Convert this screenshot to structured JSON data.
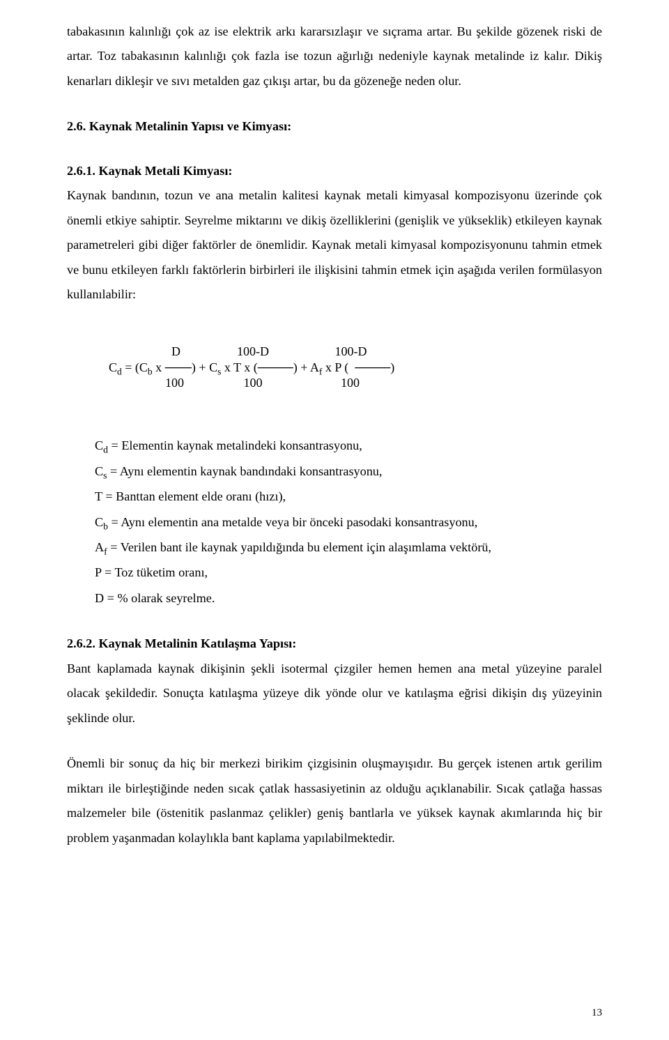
{
  "para_intro": "tabakasının kalınlığı çok az ise elektrik arkı kararsızlaşır ve sıçrama artar. Bu şekilde gözenek riski de artar. Toz tabakasının kalınlığı çok fazla ise tozun ağırlığı nedeniyle kaynak metalinde iz kalır. Dikiş kenarları dikleşir ve sıvı metalden gaz çıkışı artar, bu da gözeneğe neden olur.",
  "heading_26": "2.6. Kaynak Metalinin Yapısı ve Kimyası:",
  "heading_261": "2.6.1. Kaynak Metali Kimyası:",
  "para_261": "Kaynak bandının, tozun ve ana metalin  kalitesi kaynak metali kimyasal kompozisyonu üzerinde çok önemli etkiye sahiptir. Seyrelme miktarını ve dikiş özelliklerini (genişlik ve yükseklik) etkileyen kaynak parametreleri gibi diğer faktörler de önemlidir. Kaynak metali kimyasal kompozisyonunu tahmin etmek ve bunu etkileyen farklı faktörlerin birbirleri ile ilişkisini tahmin etmek için aşağıda verilen formülasyon kullanılabilir:",
  "formula": {
    "top": "                    D                  100-D                     100-D",
    "mid_pre": "C",
    "mid_d": "d",
    "mid_1": " = (C",
    "mid_b": "b",
    "mid_2": " x ───) + C",
    "mid_s": "s",
    "mid_3": " x T x (────) + A",
    "mid_f": "f",
    "mid_4": " x P (  ────)",
    "bot": "                  100                   100                         100"
  },
  "defs": {
    "cd_pre": "C",
    "cd_sub": "d",
    "cd_txt": " =  Elementin kaynak metalindeki konsantrasyonu,",
    "cs_pre": "C",
    "cs_sub": "s",
    "cs_txt": " = Aynı elementin kaynak bandındaki konsantrasyonu,",
    "t_txt": "T = Banttan element elde oranı (hızı),",
    "cb_pre": "C",
    "cb_sub": "b",
    "cb_txt": " = Aynı elementin ana metalde veya  bir önceki pasodaki konsantrasyonu,",
    "af_pre": "A",
    "af_sub": "f",
    "af_txt": " = Verilen bant ile kaynak yapıldığında bu element için alaşımlama vektörü,",
    "p_txt": "P = Toz tüketim oranı,",
    "d_txt": "D =  % olarak seyrelme."
  },
  "heading_262": "2.6.2. Kaynak Metalinin Katılaşma Yapısı:",
  "para_262a": "Bant kaplamada kaynak dikişinin şekli isotermal çizgiler hemen hemen ana metal yüzeyine paralel olacak şekildedir. Sonuçta katılaşma yüzeye dik yönde olur ve katılaşma eğrisi dikişin dış yüzeyinin şeklinde olur.",
  "para_262b": "Önemli bir sonuç da hiç bir merkezi birikim çizgisinin oluşmayışıdır. Bu gerçek istenen artık gerilim miktarı ile birleştiğinde neden sıcak çatlak hassasiyetinin az olduğu açıklanabilir. Sıcak çatlağa hassas malzemeler bile (östenitik paslanmaz çelikler) geniş bantlarla ve yüksek kaynak akımlarında  hiç bir problem yaşanmadan kolaylıkla bant kaplama yapılabilmektedir.",
  "page_number": "13"
}
